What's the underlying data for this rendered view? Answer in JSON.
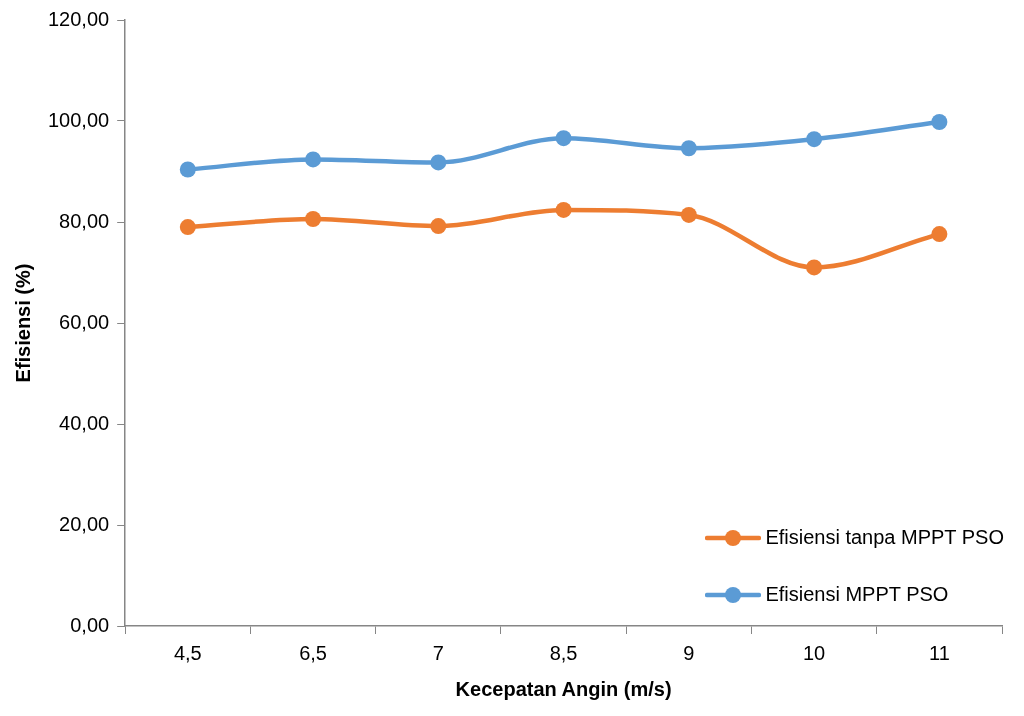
{
  "chart_data": {
    "type": "line",
    "xlabel": "Kecepatan Angin (m/s)",
    "ylabel": "Efisiensi (%)",
    "categories": [
      "4,5",
      "6,5",
      "7",
      "8,5",
      "9",
      "10",
      "11"
    ],
    "series": [
      {
        "name": "Efisiensi tanpa MPPT PSO",
        "color": "#ed7d31",
        "values": [
          79.0,
          80.6,
          79.2,
          82.4,
          81.4,
          71.0,
          77.6
        ]
      },
      {
        "name": "Efisiensi MPPT PSO",
        "color": "#5b9bd5",
        "values": [
          90.4,
          92.4,
          91.8,
          96.6,
          94.6,
          96.4,
          99.8
        ]
      }
    ],
    "ylim": [
      0,
      120
    ],
    "yticks": [
      {
        "value": 0,
        "label": "0,00"
      },
      {
        "value": 20,
        "label": "20,00"
      },
      {
        "value": 40,
        "label": "40,00"
      },
      {
        "value": 60,
        "label": "60,00"
      },
      {
        "value": 80,
        "label": "80,00"
      },
      {
        "value": 100,
        "label": "100,00"
      },
      {
        "value": 120,
        "label": "120,00"
      }
    ],
    "grid": false,
    "legend": "bottom right",
    "marker": "circle",
    "line_style": "solid"
  }
}
